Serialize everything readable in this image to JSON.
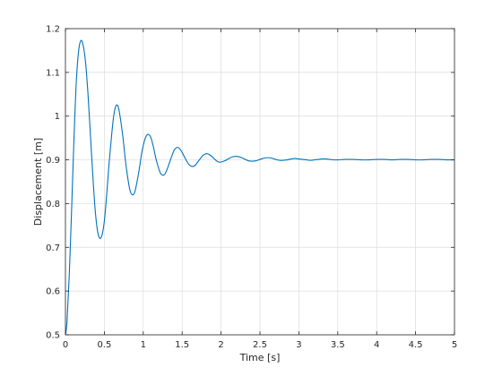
{
  "chart_data": {
    "type": "line",
    "title": "",
    "xlabel": "Time [s]",
    "ylabel": "Displacement [m]",
    "xlim": [
      0,
      5
    ],
    "ylim": [
      0.5,
      1.2
    ],
    "xticks": [
      0,
      0.5,
      1,
      1.5,
      2,
      2.5,
      3,
      3.5,
      4,
      4.5,
      5
    ],
    "xtick_labels": [
      "0",
      "0.5",
      "1",
      "1.5",
      "2",
      "2.5",
      "3",
      "3.5",
      "4",
      "4.5",
      "5"
    ],
    "yticks": [
      0.5,
      0.6,
      0.7,
      0.8,
      0.9,
      1.0,
      1.1,
      1.2
    ],
    "ytick_labels": [
      "0.5",
      "0.6",
      "0.7",
      "0.8",
      "0.9",
      "1",
      "1.1",
      "1.2"
    ],
    "grid": true,
    "series": [
      {
        "color": "#0072bd",
        "x": [
          0,
          0.02,
          0.05,
          0.08,
          0.11,
          0.14,
          0.17,
          0.2,
          0.23,
          0.26,
          0.29,
          0.32,
          0.35,
          0.38,
          0.41,
          0.44,
          0.47,
          0.5,
          0.53,
          0.56,
          0.59,
          0.62,
          0.65,
          0.68,
          0.71,
          0.74,
          0.77,
          0.8,
          0.83,
          0.86,
          0.89,
          0.92,
          0.95,
          0.98,
          1.01,
          1.04,
          1.07,
          1.1,
          1.13,
          1.16,
          1.19,
          1.22,
          1.25,
          1.28,
          1.31,
          1.34,
          1.37,
          1.4,
          1.43,
          1.46,
          1.49,
          1.52,
          1.55,
          1.58,
          1.61,
          1.64,
          1.67,
          1.7,
          1.73,
          1.76,
          1.79,
          1.82,
          1.85,
          1.88,
          1.91,
          1.94,
          1.97,
          2.0,
          2.05,
          2.1,
          2.15,
          2.2,
          2.25,
          2.3,
          2.35,
          2.4,
          2.45,
          2.5,
          2.55,
          2.6,
          2.65,
          2.7,
          2.75,
          2.8,
          2.85,
          2.9,
          2.95,
          3.0,
          3.05,
          3.1,
          3.15,
          3.2,
          3.25,
          3.3,
          3.35,
          3.4,
          3.45,
          3.5,
          3.6,
          3.7,
          3.8,
          3.9,
          4.0,
          4.1,
          4.2,
          4.3,
          4.4,
          4.5,
          4.6,
          4.7,
          4.8,
          4.9,
          5.0
        ],
        "y": [
          0.5,
          0.53,
          0.64,
          0.79,
          0.95,
          1.08,
          1.15,
          1.173,
          1.16,
          1.12,
          1.05,
          0.96,
          0.87,
          0.79,
          0.74,
          0.721,
          0.728,
          0.76,
          0.82,
          0.89,
          0.95,
          1.0,
          1.024,
          1.02,
          0.99,
          0.95,
          0.9,
          0.86,
          0.83,
          0.82,
          0.826,
          0.85,
          0.88,
          0.915,
          0.94,
          0.955,
          0.958,
          0.95,
          0.93,
          0.905,
          0.885,
          0.87,
          0.865,
          0.868,
          0.88,
          0.895,
          0.91,
          0.923,
          0.928,
          0.927,
          0.92,
          0.91,
          0.9,
          0.891,
          0.886,
          0.885,
          0.888,
          0.895,
          0.902,
          0.909,
          0.913,
          0.914,
          0.912,
          0.908,
          0.903,
          0.898,
          0.895,
          0.895,
          0.898,
          0.903,
          0.907,
          0.908,
          0.906,
          0.902,
          0.898,
          0.897,
          0.898,
          0.901,
          0.904,
          0.905,
          0.904,
          0.901,
          0.899,
          0.899,
          0.9,
          0.902,
          0.903,
          0.902,
          0.901,
          0.9,
          0.899,
          0.9,
          0.901,
          0.902,
          0.902,
          0.901,
          0.9,
          0.9,
          0.901,
          0.901,
          0.9,
          0.9,
          0.901,
          0.901,
          0.9,
          0.901,
          0.901,
          0.9,
          0.9,
          0.901,
          0.901,
          0.9,
          0.9
        ]
      }
    ]
  }
}
